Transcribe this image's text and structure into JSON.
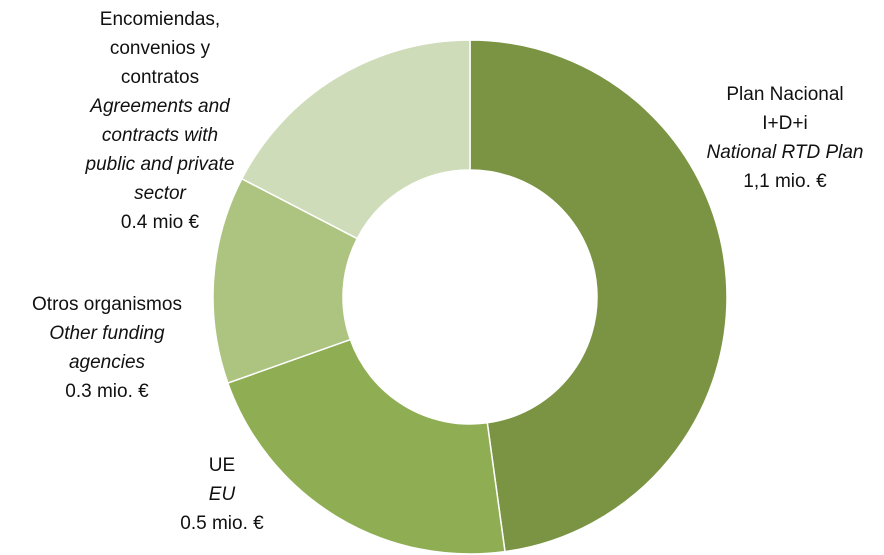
{
  "chart_data": {
    "type": "donut",
    "categories": [
      [
        "Plan Nacional",
        "I+D+i"
      ],
      [
        "UE"
      ],
      [
        "Otros organismos"
      ],
      [
        "Encomiendas,",
        "convenios y",
        "contratos"
      ]
    ],
    "categories_en": [
      [
        "National RTD Plan"
      ],
      [
        "EU"
      ],
      [
        "Other funding",
        "agencies"
      ],
      [
        "Agreements and",
        "contracts with",
        "public and private",
        "sector"
      ]
    ],
    "values": [
      1.1,
      0.5,
      0.3,
      0.4
    ],
    "value_labels": [
      "1,1 mio. €",
      "0.5 mio. €",
      "0.3 mio. €",
      "0.4 mio €"
    ],
    "colors": [
      "#7a9444",
      "#8fad52",
      "#acc47f",
      "#cfdcb9"
    ]
  }
}
